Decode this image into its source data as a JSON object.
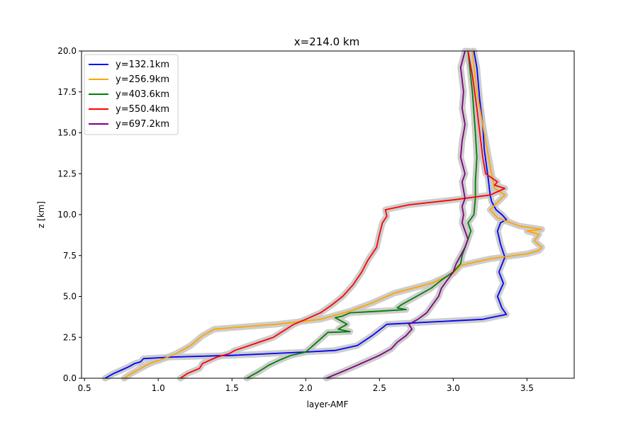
{
  "chart_data": {
    "type": "line",
    "title": "x=214.0 km",
    "xlabel": "layer-AMF",
    "ylabel": "z [km]",
    "xlim": [
      0.48,
      3.82
    ],
    "ylim": [
      0,
      20
    ],
    "xticks": [
      0.5,
      1.0,
      1.5,
      2.0,
      2.5,
      3.0,
      3.5
    ],
    "xtick_labels": [
      "0.5",
      "1.0",
      "1.5",
      "2.0",
      "2.5",
      "3.0",
      "3.5"
    ],
    "yticks": [
      0,
      2.5,
      5,
      7.5,
      10,
      12.5,
      15,
      17.5,
      20
    ],
    "ytick_labels": [
      "0.0",
      "2.5",
      "5.0",
      "7.5",
      "10.0",
      "12.5",
      "15.0",
      "17.5",
      "20.0"
    ],
    "grid": false,
    "legend_position": "top-left",
    "uncertainty_band_color": "#c8c8c8",
    "series": [
      {
        "name": "y=132.1km",
        "color": "#0000ff",
        "x": [
          0.64,
          0.7,
          0.75,
          0.8,
          0.84,
          0.88,
          0.9,
          1.0,
          1.1,
          1.5,
          2.0,
          2.2,
          2.35,
          2.45,
          2.55,
          3.2,
          3.36,
          3.33,
          3.3,
          3.34,
          3.31,
          3.35,
          3.32,
          3.3,
          3.32,
          3.36,
          3.33,
          3.29,
          3.26,
          3.25,
          3.24,
          3.21,
          3.2,
          3.18,
          3.16,
          3.14
        ],
        "y": [
          0,
          0.3,
          0.5,
          0.7,
          0.9,
          1.0,
          1.2,
          1.25,
          1.3,
          1.4,
          1.6,
          1.7,
          2.0,
          2.6,
          3.3,
          3.6,
          3.9,
          4.3,
          5.0,
          5.8,
          6.5,
          7.4,
          8.2,
          9.0,
          9.5,
          9.7,
          10.0,
          10.3,
          10.8,
          11.2,
          12.0,
          14.0,
          15.5,
          17.0,
          19.0,
          20.0
        ]
      },
      {
        "name": "y=256.9km",
        "color": "#ffa500",
        "x": [
          0.77,
          0.82,
          0.88,
          0.92,
          0.97,
          1.01,
          1.12,
          1.22,
          1.3,
          1.38,
          1.8,
          2.1,
          2.3,
          2.45,
          2.6,
          2.85,
          3.0,
          3.05,
          3.25,
          3.5,
          3.58,
          3.6,
          3.55,
          3.58,
          3.5,
          3.6,
          3.45,
          3.3,
          3.25,
          3.35,
          3.28,
          3.26,
          3.23,
          3.2,
          3.16,
          3.13
        ],
        "y": [
          0,
          0.3,
          0.6,
          0.8,
          1.0,
          1.1,
          1.5,
          2.0,
          2.6,
          3.0,
          3.3,
          3.6,
          4.1,
          4.6,
          5.2,
          5.8,
          6.4,
          6.9,
          7.3,
          7.6,
          7.8,
          8.0,
          8.4,
          8.8,
          9.0,
          9.1,
          9.3,
          9.8,
          10.3,
          11.2,
          11.6,
          12.5,
          14.0,
          15.5,
          17.5,
          20.0
        ]
      },
      {
        "name": "y=403.6km",
        "color": "#008000",
        "x": [
          1.6,
          1.68,
          1.75,
          1.82,
          1.9,
          2.0,
          2.05,
          2.1,
          2.15,
          2.3,
          2.22,
          2.28,
          2.2,
          2.25,
          2.3,
          2.5,
          2.68,
          2.62,
          2.65,
          2.75,
          2.85,
          2.92,
          3.0,
          3.05,
          3.06,
          3.08,
          3.1,
          3.12,
          3.1,
          3.14,
          3.15,
          3.15,
          3.16,
          3.15,
          3.13,
          3.1
        ],
        "y": [
          0,
          0.4,
          0.8,
          1.1,
          1.4,
          1.6,
          2.0,
          2.4,
          2.8,
          2.85,
          3.0,
          3.3,
          3.7,
          3.8,
          4.0,
          4.1,
          4.2,
          4.3,
          4.5,
          5.0,
          5.5,
          6.0,
          6.5,
          7.0,
          7.5,
          8.0,
          8.5,
          9.0,
          9.5,
          10.0,
          11.0,
          12.0,
          13.5,
          15.0,
          17.5,
          20.0
        ]
      },
      {
        "name": "y=550.4km",
        "color": "#ff0000",
        "x": [
          1.15,
          1.2,
          1.28,
          1.3,
          1.35,
          1.4,
          1.48,
          1.52,
          1.65,
          1.78,
          1.85,
          1.92,
          2.0,
          2.1,
          2.18,
          2.25,
          2.32,
          2.38,
          2.42,
          2.48,
          2.5,
          2.52,
          2.55,
          2.54,
          2.7,
          3.0,
          3.25,
          3.35,
          3.28,
          3.3,
          3.22,
          3.2,
          3.18,
          3.16,
          3.13,
          3.1
        ],
        "y": [
          0,
          0.3,
          0.6,
          0.9,
          1.1,
          1.3,
          1.5,
          1.7,
          2.1,
          2.5,
          2.9,
          3.3,
          3.6,
          4.0,
          4.5,
          5.0,
          5.7,
          6.5,
          7.2,
          8.0,
          8.8,
          9.5,
          9.9,
          10.3,
          10.6,
          10.9,
          11.2,
          11.6,
          11.8,
          12.0,
          12.5,
          13.5,
          15.0,
          16.5,
          18.5,
          20.0
        ]
      },
      {
        "name": "y=697.2km",
        "color": "#800080",
        "x": [
          2.14,
          2.22,
          2.3,
          2.4,
          2.5,
          2.58,
          2.62,
          2.68,
          2.72,
          2.7,
          2.76,
          2.82,
          2.86,
          2.9,
          2.92,
          2.96,
          3.0,
          3.02,
          3.05,
          3.08,
          3.1,
          3.08,
          3.06,
          3.07,
          3.06,
          3.08,
          3.07,
          3.06,
          3.08,
          3.05,
          3.06,
          3.08,
          3.06,
          3.07,
          3.05,
          3.08
        ],
        "y": [
          0,
          0.3,
          0.6,
          1.0,
          1.4,
          1.8,
          2.2,
          2.6,
          3.0,
          3.3,
          3.6,
          4.0,
          4.5,
          5.0,
          5.5,
          6.0,
          6.5,
          7.0,
          7.5,
          8.0,
          8.5,
          9.0,
          9.5,
          10.0,
          10.5,
          11.0,
          11.5,
          12.0,
          12.5,
          13.5,
          14.5,
          15.5,
          16.5,
          17.5,
          19.0,
          20.0
        ]
      }
    ]
  }
}
